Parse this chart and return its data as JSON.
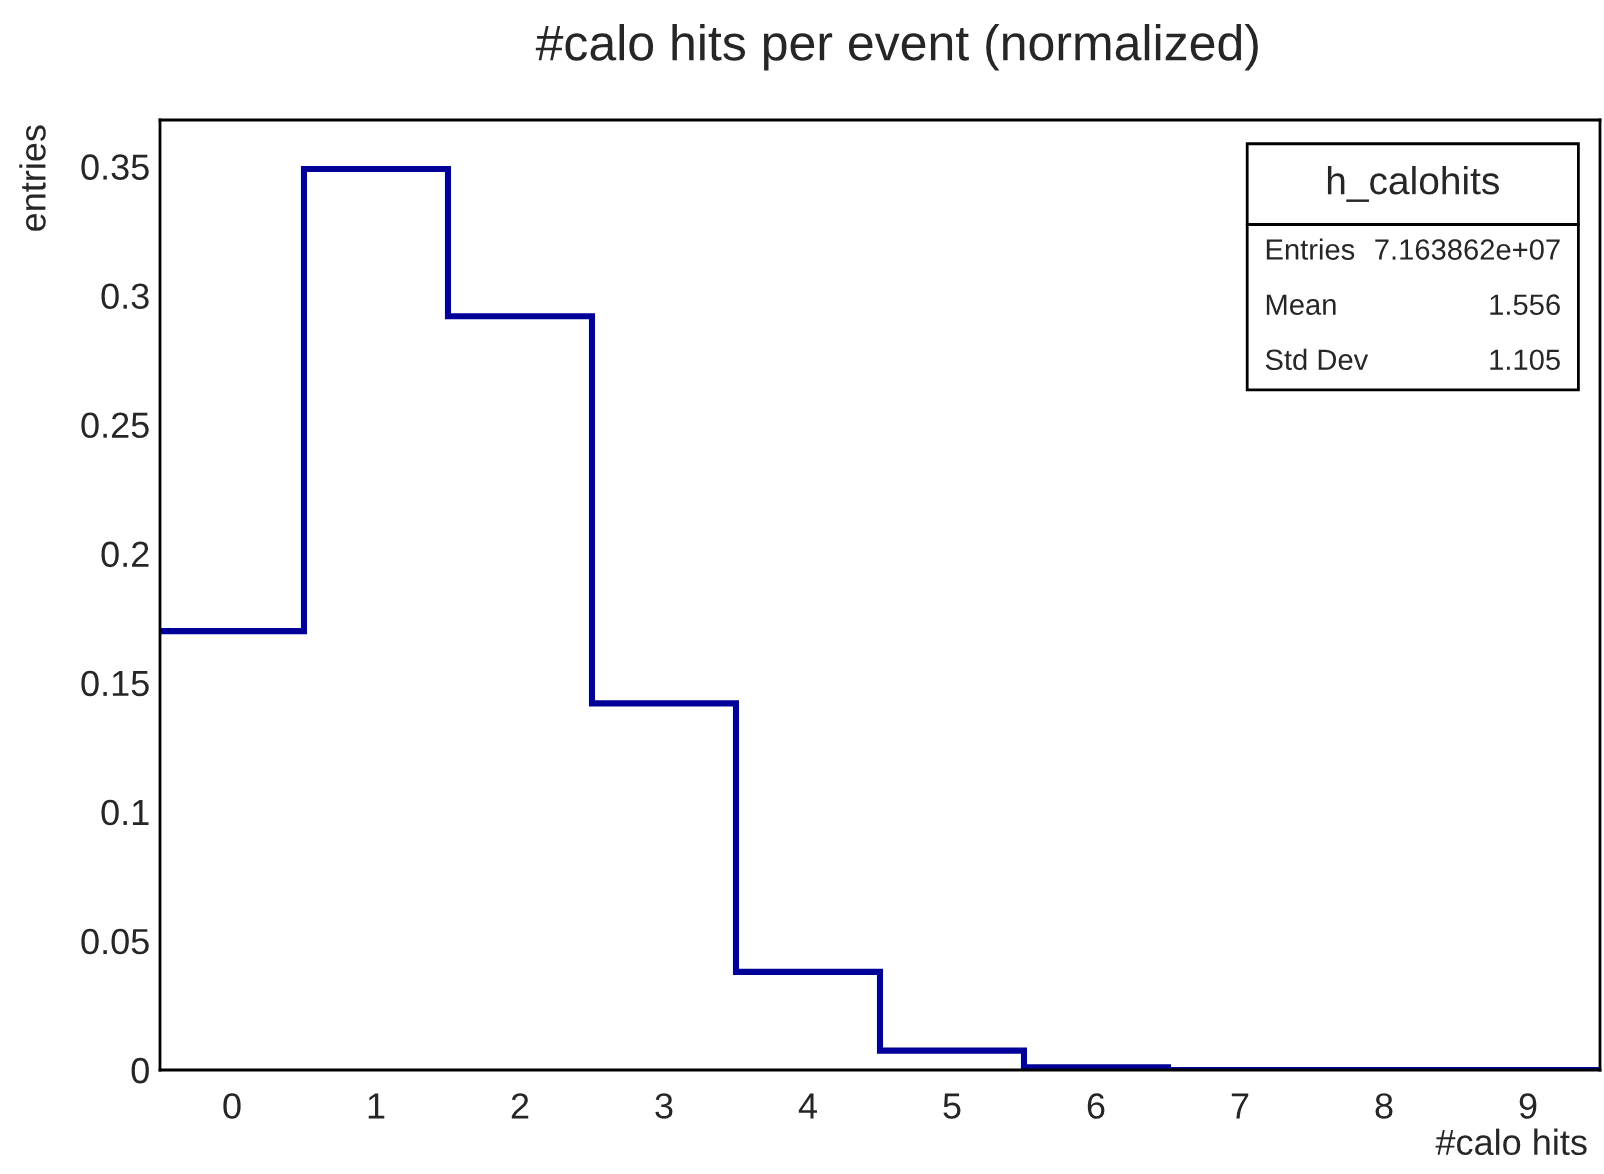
{
  "chart_data": {
    "type": "histogram",
    "title": "#calo hits per event (normalized)",
    "xlabel": "#calo hits",
    "ylabel": "entries",
    "bins": [
      -0.5,
      0.5,
      1.5,
      2.5,
      3.5,
      4.5,
      5.5,
      6.5,
      7.5,
      8.5,
      9.5
    ],
    "values": [
      0.17,
      0.349,
      0.292,
      0.142,
      0.038,
      0.0075,
      0.001,
      0,
      0,
      0
    ],
    "color": "#000099",
    "xlim": [
      -0.5,
      9.5
    ],
    "ylim": [
      0,
      0.368
    ],
    "xticks": [
      0,
      1,
      2,
      3,
      4,
      5,
      6,
      7,
      8,
      9
    ],
    "yticks": [
      0,
      0.05,
      0.1,
      0.15,
      0.2,
      0.25,
      0.3,
      0.35
    ],
    "grid": false,
    "legend": false,
    "annotations": [
      "h_calohits",
      "Entries",
      "7.163862e+07",
      "Mean",
      "1.556",
      "Std Dev",
      "1.105"
    ]
  }
}
